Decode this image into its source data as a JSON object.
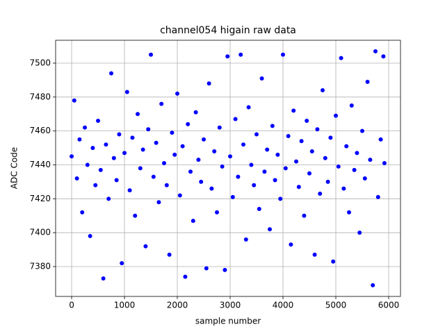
{
  "chart_data": {
    "type": "scatter",
    "title": "channel054 higain raw data",
    "xlabel": "sample number",
    "ylabel": "ADC Code",
    "color": "#0000ff",
    "grid": true,
    "xlim": [
      -303,
      6224
    ],
    "ylim": [
      7362.4,
      7513.5
    ],
    "xticks": [
      0,
      1000,
      2000,
      3000,
      4000,
      5000,
      6000
    ],
    "yticks": [
      7380,
      7400,
      7420,
      7440,
      7460,
      7480,
      7500
    ],
    "x": [
      0,
      50,
      100,
      150,
      200,
      250,
      300,
      350,
      400,
      450,
      500,
      550,
      600,
      650,
      700,
      750,
      800,
      850,
      900,
      950,
      1000,
      1050,
      1100,
      1150,
      1200,
      1250,
      1300,
      1350,
      1400,
      1450,
      1500,
      1550,
      1600,
      1650,
      1700,
      1750,
      1800,
      1850,
      1900,
      1950,
      2000,
      2050,
      2100,
      2150,
      2200,
      2250,
      2300,
      2350,
      2400,
      2450,
      2500,
      2550,
      2600,
      2650,
      2700,
      2750,
      2800,
      2850,
      2900,
      2950,
      3000,
      3050,
      3100,
      3150,
      3200,
      3250,
      3300,
      3350,
      3400,
      3450,
      3500,
      3550,
      3600,
      3650,
      3700,
      3750,
      3800,
      3850,
      3900,
      3950,
      4000,
      4050,
      4100,
      4150,
      4200,
      4250,
      4300,
      4350,
      4400,
      4450,
      4500,
      4550,
      4600,
      4650,
      4700,
      4750,
      4800,
      4850,
      4900,
      4950,
      5000,
      5050,
      5100,
      5150,
      5200,
      5250,
      5300,
      5350,
      5400,
      5450,
      5500,
      5550,
      5600,
      5650,
      5700,
      5750,
      5800,
      5850,
      5900,
      5920
    ],
    "values": [
      7445,
      7478,
      7432,
      7455,
      7412,
      7462,
      7440,
      7398,
      7450,
      7428,
      7466,
      7437,
      7373,
      7452,
      7420,
      7494,
      7444,
      7431,
      7458,
      7382,
      7447,
      7483,
      7425,
      7456,
      7410,
      7470,
      7438,
      7449,
      7392,
      7461,
      7505,
      7433,
      7453,
      7418,
      7476,
      7441,
      7428,
      7387,
      7459,
      7446,
      7482,
      7422,
      7451,
      7374,
      7464,
      7436,
      7407,
      7471,
      7443,
      7430,
      7455,
      7379,
      7488,
      7426,
      7448,
      7412,
      7462,
      7439,
      7378,
      7504,
      7445,
      7421,
      7467,
      7433,
      7505,
      7452,
      7396,
      7474,
      7440,
      7428,
      7458,
      7414,
      7491,
      7436,
      7449,
      7402,
      7463,
      7431,
      7446,
      7420,
      7505,
      7438,
      7457,
      7393,
      7472,
      7442,
      7427,
      7454,
      7410,
      7466,
      7435,
      7448,
      7387,
      7461,
      7423,
      7484,
      7444,
      7430,
      7456,
      7383,
      7469,
      7439,
      7503,
      7426,
      7451,
      7412,
      7475,
      7437,
      7447,
      7400,
      7460,
      7432,
      7489,
      7443,
      7369,
      7507,
      7421,
      7455,
      7504,
      7441
    ]
  }
}
